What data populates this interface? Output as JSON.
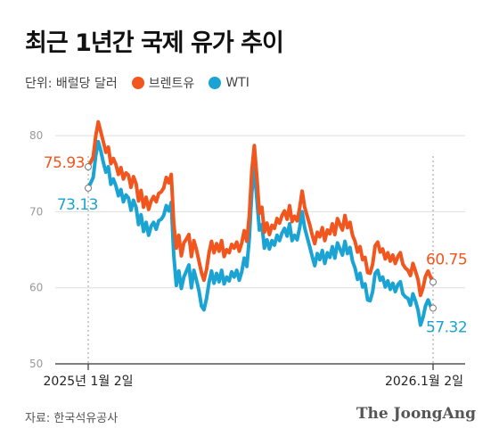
{
  "title": "최근 1년간 국제 유가 추이",
  "legend": {
    "unit": "단위: 배럴당 달러",
    "series": [
      {
        "name": "브렌트유",
        "color": "#f0561d"
      },
      {
        "name": "WTI",
        "color": "#1aa3d3"
      }
    ]
  },
  "source": "자료: 한국석유공사",
  "brand": "The JoongAng",
  "chart_data": {
    "type": "line",
    "ylim": [
      50,
      82
    ],
    "yticks": [
      80,
      70,
      60,
      50
    ],
    "grid": true,
    "xticklabels": [
      "2025년 1월 2일",
      "2026.1월 2일"
    ],
    "start_values": {
      "brent": "75.93",
      "wti": "73.13"
    },
    "end_values": {
      "brent": "60.75",
      "wti": "57.32"
    },
    "series": [
      {
        "name": "브렌트유",
        "key": "brent",
        "color": "#f0561d",
        "values": [
          75.9,
          76.5,
          77.2,
          80.0,
          81.8,
          80.5,
          79.2,
          77.8,
          78.5,
          76.3,
          77.0,
          76.2,
          74.9,
          75.8,
          74.3,
          75.1,
          74.8,
          73.2,
          74.6,
          73.7,
          71.4,
          72.8,
          70.6,
          71.9,
          70.3,
          71.4,
          72.0,
          71.3,
          72.4,
          72.6,
          73.1,
          74.5,
          73.8,
          74.9,
          68.4,
          65.2,
          66.9,
          64.2,
          65.9,
          66.4,
          67.0,
          64.1,
          66.2,
          65.0,
          63.5,
          62.0,
          61.0,
          62.4,
          64.6,
          66.1,
          64.6,
          65.8,
          64.8,
          66.2,
          64.1,
          65.0,
          64.6,
          65.7,
          65.2,
          66.0,
          64.8,
          65.9,
          67.5,
          66.1,
          69.5,
          75.4,
          78.7,
          74.5,
          69.8,
          70.6,
          67.3,
          68.5,
          67.0,
          68.2,
          67.8,
          69.1,
          68.5,
          69.5,
          70.1,
          69.0,
          70.8,
          68.7,
          69.4,
          68.8,
          70.5,
          72.7,
          70.6,
          69.4,
          68.3,
          66.9,
          65.8,
          67.3,
          66.7,
          67.9,
          66.2,
          67.6,
          67.1,
          68.4,
          67.0,
          69.1,
          68.3,
          67.6,
          69.5,
          67.9,
          68.6,
          66.9,
          66.1,
          64.7,
          65.4,
          63.7,
          64.0,
          62.0,
          61.9,
          63.1,
          65.5,
          66.0,
          64.7,
          65.1,
          63.8,
          64.6,
          63.5,
          64.3,
          63.2,
          64.1,
          64.6,
          63.1,
          62.6,
          62.3,
          61.6,
          63.2,
          62.2,
          61.1,
          59.0,
          60.0,
          61.5,
          62.2,
          61.4,
          60.75
        ]
      },
      {
        "name": "WTI",
        "key": "wti",
        "color": "#1aa3d3",
        "values": [
          73.1,
          73.8,
          74.5,
          77.4,
          79.2,
          78.0,
          76.5,
          75.2,
          75.9,
          73.6,
          74.3,
          73.4,
          72.1,
          72.9,
          71.3,
          72.2,
          71.8,
          70.2,
          71.5,
          70.6,
          68.3,
          69.6,
          67.4,
          68.6,
          66.9,
          68.1,
          68.6,
          67.7,
          68.8,
          69.0,
          69.5,
          70.8,
          70.1,
          71.2,
          64.3,
          60.3,
          62.2,
          59.9,
          61.4,
          62.2,
          63.0,
          60.0,
          62.3,
          61.0,
          59.6,
          57.6,
          57.1,
          58.6,
          60.7,
          62.2,
          60.6,
          61.9,
          60.8,
          62.3,
          60.5,
          61.4,
          60.9,
          62.1,
          61.4,
          62.3,
          61.0,
          62.1,
          63.9,
          62.8,
          66.5,
          72.5,
          75.8,
          71.6,
          67.6,
          68.3,
          65.2,
          66.3,
          65.1,
          66.2,
          65.6,
          66.9,
          66.2,
          67.2,
          67.8,
          66.8,
          68.4,
          66.2,
          66.9,
          66.3,
          67.9,
          70.0,
          67.9,
          66.6,
          65.4,
          64.1,
          62.9,
          64.5,
          63.7,
          64.9,
          63.2,
          64.6,
          64.0,
          65.4,
          63.9,
          65.9,
          65.1,
          64.3,
          66.1,
          64.5,
          65.3,
          63.5,
          62.6,
          61.1,
          61.9,
          60.1,
          60.5,
          58.4,
          58.3,
          59.5,
          61.9,
          62.3,
          61.0,
          61.4,
          60.1,
          60.9,
          59.8,
          60.6,
          59.5,
          60.4,
          60.8,
          59.2,
          58.8,
          58.6,
          57.7,
          59.2,
          58.3,
          57.1,
          55.1,
          56.1,
          57.6,
          58.4,
          57.6,
          57.32
        ]
      }
    ]
  }
}
